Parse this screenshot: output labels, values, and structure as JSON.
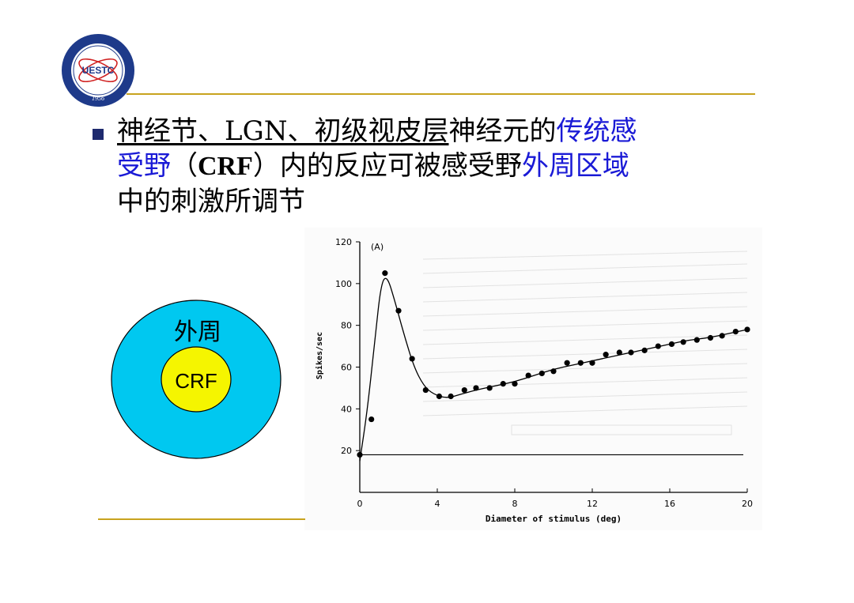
{
  "slide": {
    "logo_text": "UESTC",
    "logo_year": "1956",
    "bullet_line1_underlined": "神经节、LGN、初级视皮层",
    "bullet_line1_plain": "神经元的",
    "bullet_line1_blue": "传统感",
    "bullet_line2_blue_a": "受野",
    "bullet_line2_plain_a": "（",
    "bullet_line2_bold": "CRF",
    "bullet_line2_plain_b": "）内的反应可被感受野",
    "bullet_line2_blue_b": "外周区域",
    "bullet_line3": "中的刺激所调节"
  },
  "diagram": {
    "outer_label": "外周",
    "inner_label": "CRF",
    "outer_color": "#00c8f0",
    "inner_color": "#f5f500"
  },
  "colors": {
    "accent_rule": "#c8a31e",
    "bullet": "#1e2a6e",
    "highlight_text": "#1a1ad6"
  },
  "chart_data": {
    "type": "scatter",
    "panel_label": "(A)",
    "xlabel": "Diameter of stimulus (deg)",
    "ylabel": "Spikes/sec",
    "xlim": [
      0,
      20
    ],
    "ylim": [
      0,
      120
    ],
    "x_ticks": [
      0,
      4,
      8,
      12,
      16,
      20
    ],
    "y_ticks": [
      20,
      40,
      60,
      80,
      100,
      120
    ],
    "baseline": 18,
    "points": [
      {
        "x": 0.0,
        "y": 18
      },
      {
        "x": 0.6,
        "y": 35
      },
      {
        "x": 1.3,
        "y": 105
      },
      {
        "x": 2.0,
        "y": 87
      },
      {
        "x": 2.7,
        "y": 64
      },
      {
        "x": 3.4,
        "y": 49
      },
      {
        "x": 4.1,
        "y": 46
      },
      {
        "x": 4.7,
        "y": 46
      },
      {
        "x": 5.4,
        "y": 49
      },
      {
        "x": 6.0,
        "y": 50
      },
      {
        "x": 6.7,
        "y": 50
      },
      {
        "x": 7.4,
        "y": 52
      },
      {
        "x": 8.0,
        "y": 52
      },
      {
        "x": 8.7,
        "y": 56
      },
      {
        "x": 9.4,
        "y": 57
      },
      {
        "x": 10.0,
        "y": 58
      },
      {
        "x": 10.7,
        "y": 62
      },
      {
        "x": 11.4,
        "y": 62
      },
      {
        "x": 12.0,
        "y": 62
      },
      {
        "x": 12.7,
        "y": 66
      },
      {
        "x": 13.4,
        "y": 67
      },
      {
        "x": 14.0,
        "y": 67
      },
      {
        "x": 14.7,
        "y": 68
      },
      {
        "x": 15.4,
        "y": 70
      },
      {
        "x": 16.1,
        "y": 71
      },
      {
        "x": 16.7,
        "y": 72
      },
      {
        "x": 17.4,
        "y": 73
      },
      {
        "x": 18.1,
        "y": 74
      },
      {
        "x": 18.7,
        "y": 75
      },
      {
        "x": 19.4,
        "y": 77
      },
      {
        "x": 20.0,
        "y": 78
      }
    ],
    "curve": [
      [
        0,
        15
      ],
      [
        0.4,
        40
      ],
      [
        0.8,
        75
      ],
      [
        1.1,
        100
      ],
      [
        1.4,
        104
      ],
      [
        1.8,
        92
      ],
      [
        2.3,
        75
      ],
      [
        2.8,
        60
      ],
      [
        3.3,
        51
      ],
      [
        3.8,
        47
      ],
      [
        4.5,
        45
      ],
      [
        5.2,
        47
      ],
      [
        6.0,
        49
      ],
      [
        7.0,
        51
      ],
      [
        8.0,
        53
      ],
      [
        9.0,
        56
      ],
      [
        10.0,
        59
      ],
      [
        11.0,
        61
      ],
      [
        12.0,
        63
      ],
      [
        13.0,
        65
      ],
      [
        14.0,
        67
      ],
      [
        15.0,
        69
      ],
      [
        16.0,
        71
      ],
      [
        17.0,
        73
      ],
      [
        18.0,
        74
      ],
      [
        19.0,
        76
      ],
      [
        20.0,
        78
      ]
    ]
  }
}
